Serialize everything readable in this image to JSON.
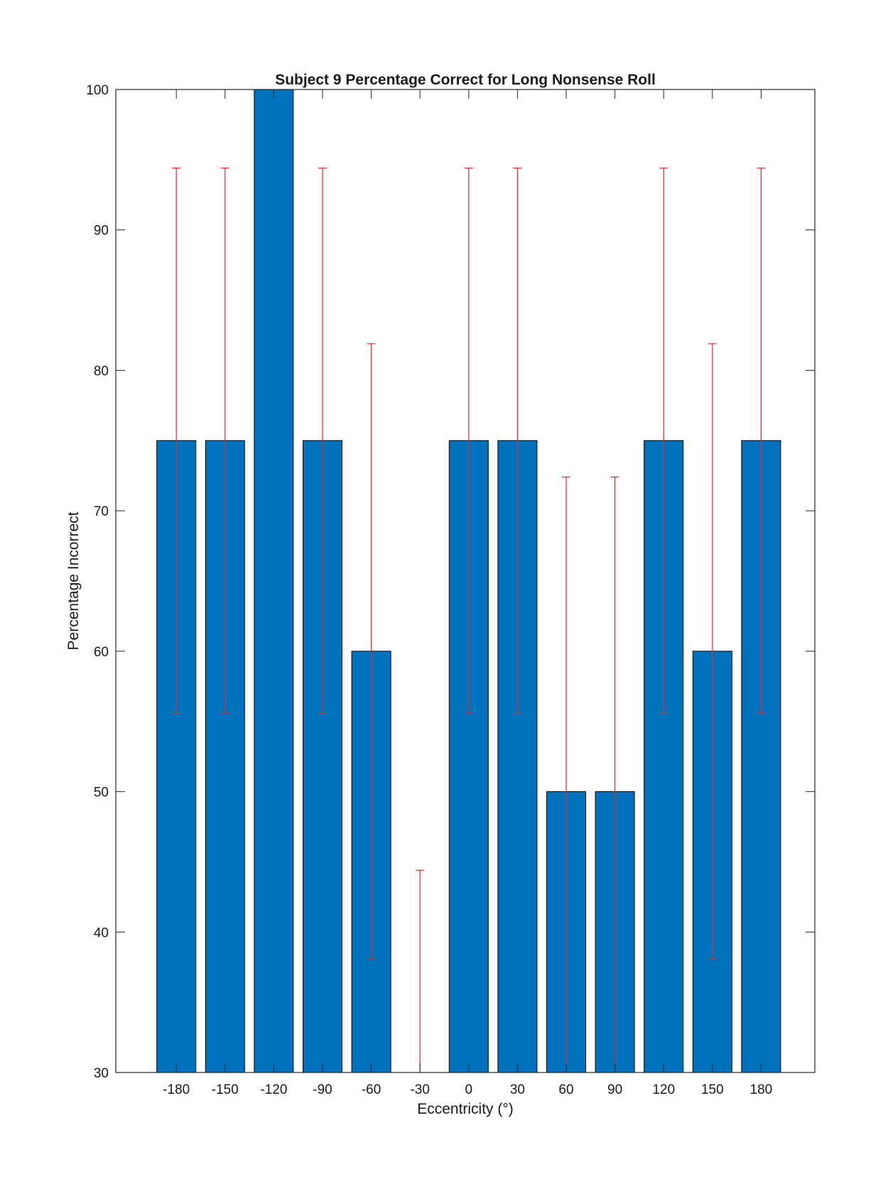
{
  "chart_data": {
    "type": "bar",
    "title": "Subject 9 Percentage Correct for Long Nonsense Roll",
    "xlabel": "Eccentricity (°)",
    "ylabel": "Percentage Incorrect",
    "categories": [
      "-180",
      "-150",
      "-120",
      "-90",
      "-60",
      "-30",
      "0",
      "30",
      "60",
      "90",
      "120",
      "150",
      "180"
    ],
    "values": [
      75,
      75,
      100,
      75,
      60,
      30,
      75,
      75,
      50,
      50,
      75,
      60,
      75
    ],
    "error_bars": [
      {
        "low": 55.6,
        "high": 94.4
      },
      {
        "low": 55.6,
        "high": 94.4
      },
      null,
      {
        "low": 55.6,
        "high": 94.4
      },
      {
        "low": 38.1,
        "high": 81.9
      },
      {
        "low": 30,
        "high": 44.4
      },
      {
        "low": 55.6,
        "high": 94.4
      },
      {
        "low": 55.6,
        "high": 94.4
      },
      {
        "low": 30,
        "high": 72.4
      },
      {
        "low": 30,
        "high": 72.4
      },
      {
        "low": 55.6,
        "high": 94.4
      },
      {
        "low": 38.1,
        "high": 81.9
      },
      {
        "low": 55.6,
        "high": 94.4
      }
    ],
    "ylim": [
      30,
      100
    ],
    "yticks": [
      "30",
      "40",
      "50",
      "60",
      "70",
      "80",
      "90",
      "100"
    ],
    "grid": false,
    "legend": "none",
    "colors": {
      "bar": "#0072bd",
      "bar_edge": "#000000",
      "error": "#e8262a",
      "axes": "#262626"
    }
  }
}
